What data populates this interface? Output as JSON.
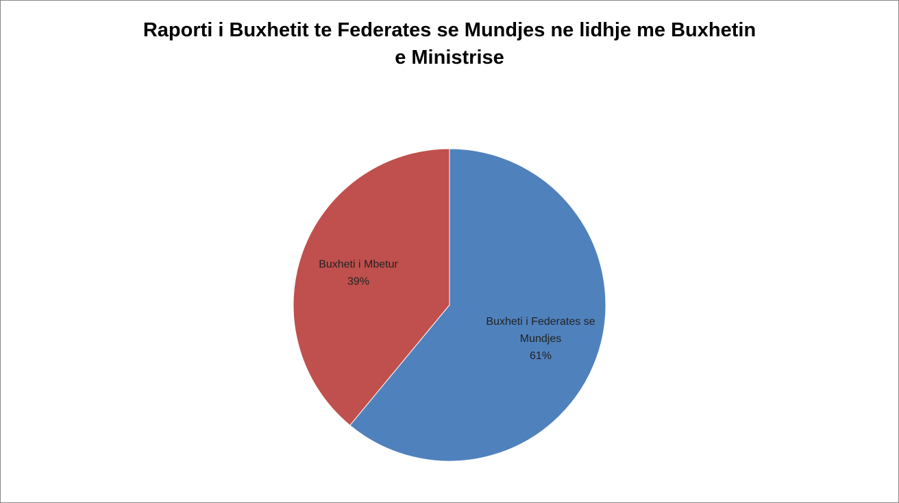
{
  "chart_data": {
    "type": "pie",
    "title_lines": [
      "Raporti i Buxhetit te Federates se Mundjes ne lidhje me Buxhetin",
      "e Ministrise"
    ],
    "slices": [
      {
        "label_lines": [
          "Buxheti i Federates se",
          "Mundjes"
        ],
        "percent_label": "61%",
        "value": 61,
        "color": "#4f81bd"
      },
      {
        "label_lines": [
          "Buxheti i Mbetur"
        ],
        "percent_label": "39%",
        "value": 39,
        "color": "#c0504d"
      }
    ],
    "legend": "none",
    "border_color": "#868686"
  }
}
